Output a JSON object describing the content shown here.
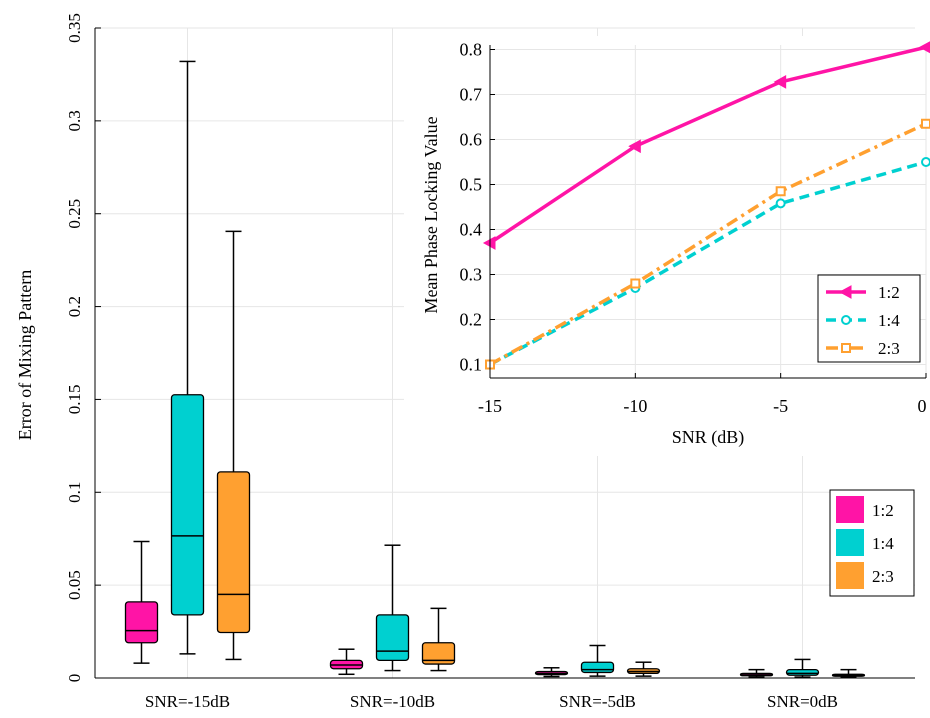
{
  "chart_data": [
    {
      "type": "box",
      "ylabel": "Error of Mixing Pattern",
      "xlabel": "",
      "ylim": [
        0,
        0.35
      ],
      "yticks": [
        0,
        0.05,
        0.1,
        0.15,
        0.2,
        0.25,
        0.3,
        0.35
      ],
      "ytick_labels": [
        "0",
        "0.05",
        "0.1",
        "0.15",
        "0.2",
        "0.25",
        "0.3",
        "0.35"
      ],
      "grid": true,
      "legend_position": "right",
      "categories": [
        "SNR=-15dB",
        "SNR=-10dB",
        "SNR=-5dB",
        "SNR=0dB"
      ],
      "series": [
        {
          "name": "1:2",
          "color": "#ff14a6",
          "boxes": [
            {
              "min": 0.008,
              "q1": 0.019,
              "median": 0.0255,
              "q3": 0.041,
              "max": 0.0735
            },
            {
              "min": 0.002,
              "q1": 0.005,
              "median": 0.007,
              "q3": 0.0095,
              "max": 0.0155
            },
            {
              "min": 0.0008,
              "q1": 0.0018,
              "median": 0.0025,
              "q3": 0.0035,
              "max": 0.0055
            },
            {
              "min": 0.0005,
              "q1": 0.0012,
              "median": 0.0017,
              "q3": 0.0025,
              "max": 0.0045
            }
          ]
        },
        {
          "name": "1:4",
          "color": "#00d0d0",
          "boxes": [
            {
              "min": 0.013,
              "q1": 0.034,
              "median": 0.0765,
              "q3": 0.1525,
              "max": 0.332
            },
            {
              "min": 0.004,
              "q1": 0.0095,
              "median": 0.0145,
              "q3": 0.034,
              "max": 0.0715
            },
            {
              "min": 0.001,
              "q1": 0.003,
              "median": 0.0045,
              "q3": 0.0085,
              "max": 0.0175
            },
            {
              "min": 0.0005,
              "q1": 0.0015,
              "median": 0.0025,
              "q3": 0.0045,
              "max": 0.01
            }
          ]
        },
        {
          "name": "2:3",
          "color": "#ffa030",
          "boxes": [
            {
              "min": 0.01,
              "q1": 0.0245,
              "median": 0.045,
              "q3": 0.111,
              "max": 0.2405
            },
            {
              "min": 0.004,
              "q1": 0.0075,
              "median": 0.0095,
              "q3": 0.019,
              "max": 0.0375
            },
            {
              "min": 0.001,
              "q1": 0.0025,
              "median": 0.0035,
              "q3": 0.005,
              "max": 0.0085
            },
            {
              "min": 0.0005,
              "q1": 0.001,
              "median": 0.0015,
              "q3": 0.002,
              "max": 0.0045
            }
          ]
        }
      ]
    },
    {
      "type": "line",
      "xlabel": "SNR (dB)",
      "ylabel": "Mean Phase Locking Value",
      "x": [
        -15,
        -10,
        -5,
        0
      ],
      "xlim": [
        -15,
        0
      ],
      "xticks": [
        -15,
        -10,
        -5,
        0
      ],
      "xtick_labels": [
        "-15",
        "-10",
        "-5",
        "0"
      ],
      "ylim": [
        0.07,
        0.81
      ],
      "yticks": [
        0.1,
        0.2,
        0.3,
        0.4,
        0.5,
        0.6,
        0.7,
        0.8
      ],
      "ytick_labels": [
        "0.1",
        "0.2",
        "0.3",
        "0.4",
        "0.5",
        "0.6",
        "0.7",
        "0.8"
      ],
      "grid": true,
      "legend_position": "bottom-right",
      "series": [
        {
          "name": "1:2",
          "color": "#ff14a6",
          "dash": "solid",
          "marker": "triangle-left",
          "values": [
            0.37,
            0.585,
            0.728,
            0.805
          ]
        },
        {
          "name": "1:4",
          "color": "#00d0d0",
          "dash": "dashed",
          "marker": "circle",
          "values": [
            0.1,
            0.27,
            0.458,
            0.55
          ]
        },
        {
          "name": "2:3",
          "color": "#ffa030",
          "dash": "dashdot",
          "marker": "square",
          "values": [
            0.1,
            0.28,
            0.485,
            0.635
          ]
        }
      ]
    }
  ]
}
